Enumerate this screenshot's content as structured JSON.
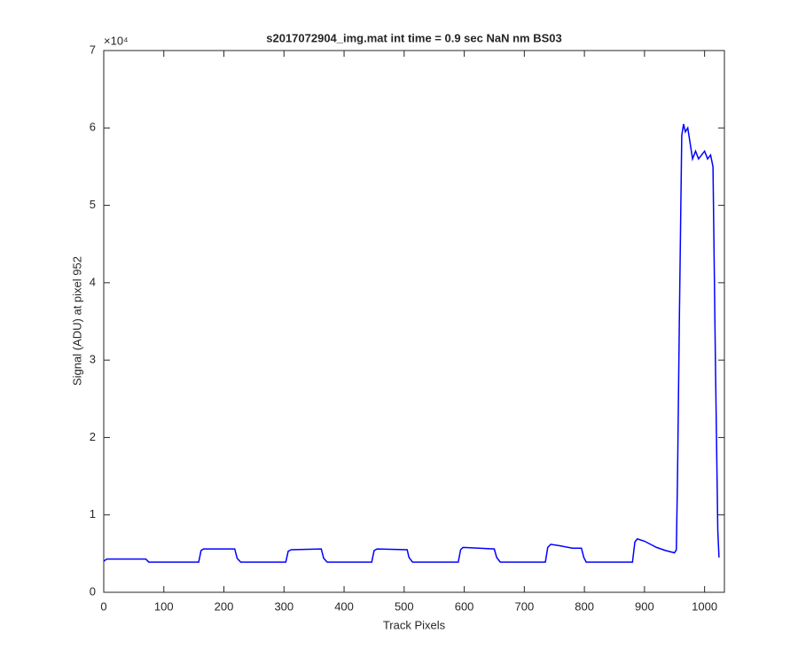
{
  "chart_data": {
    "type": "line",
    "title": "s2017072904_img.mat int time = 0.9 sec  NaN nm BS03",
    "x_label": "Track Pixels",
    "y_label": "Signal (ADU) at pixel 952",
    "y_exponent_label": "×10⁴",
    "xlim": [
      0,
      1033
    ],
    "xticks": [
      0,
      100,
      200,
      300,
      400,
      500,
      600,
      700,
      800,
      900,
      1000
    ],
    "ylim": [
      0,
      7
    ],
    "yticks": [
      0,
      1,
      2,
      3,
      4,
      5,
      6,
      7
    ],
    "grid": false,
    "x": [
      0,
      5,
      70,
      75,
      158,
      162,
      166,
      218,
      222,
      228,
      303,
      307,
      312,
      362,
      366,
      372,
      446,
      450,
      455,
      505,
      508,
      514,
      590,
      594,
      598,
      650,
      654,
      660,
      735,
      739,
      744,
      760,
      780,
      795,
      799,
      803,
      880,
      884,
      888,
      900,
      910,
      920,
      935,
      945,
      950,
      953,
      955,
      958,
      962,
      965,
      968,
      972,
      976,
      980,
      985,
      990,
      995,
      1000,
      1005,
      1010,
      1014,
      1018,
      1022,
      1024
    ],
    "series": [
      {
        "color": "#0000ff",
        "values": [
          0.4,
          0.43,
          0.43,
          0.39,
          0.39,
          0.54,
          0.56,
          0.56,
          0.44,
          0.39,
          0.39,
          0.53,
          0.55,
          0.56,
          0.44,
          0.39,
          0.39,
          0.54,
          0.56,
          0.55,
          0.45,
          0.39,
          0.39,
          0.55,
          0.58,
          0.56,
          0.45,
          0.39,
          0.39,
          0.58,
          0.62,
          0.6,
          0.57,
          0.57,
          0.45,
          0.39,
          0.39,
          0.65,
          0.69,
          0.66,
          0.62,
          0.58,
          0.54,
          0.52,
          0.51,
          0.55,
          1.5,
          3.5,
          5.9,
          6.05,
          5.95,
          6.0,
          5.8,
          5.6,
          5.7,
          5.6,
          5.65,
          5.7,
          5.6,
          5.65,
          5.5,
          3.0,
          0.8,
          0.45
        ]
      }
    ]
  }
}
